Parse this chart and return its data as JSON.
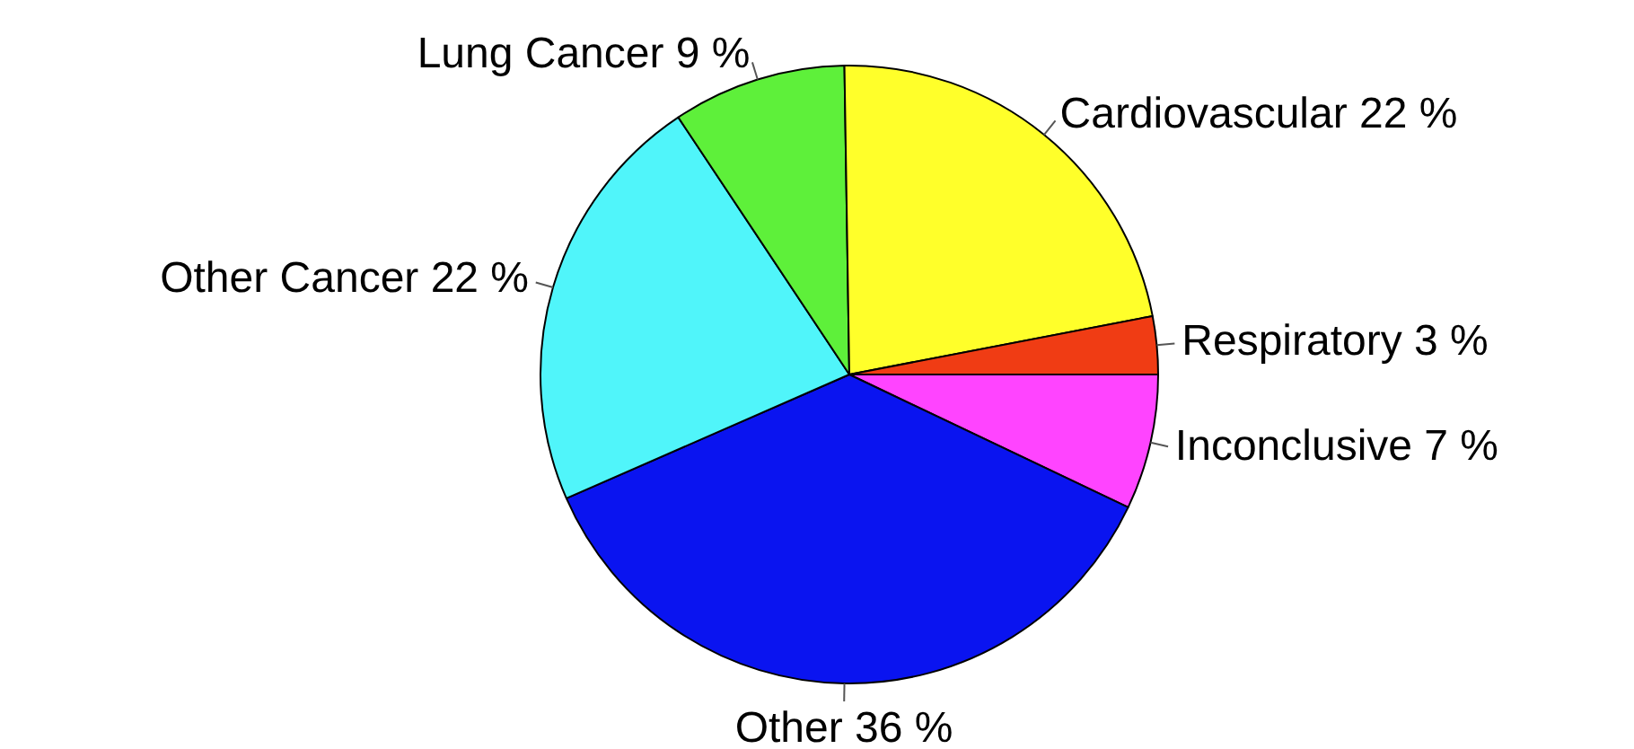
{
  "chart_data": {
    "type": "pie",
    "categories": [
      "Inconclusive",
      "Other",
      "Other Cancer",
      "Lung Cancer",
      "Cardiovascular",
      "Respiratory"
    ],
    "values": [
      7,
      36,
      22,
      9,
      22,
      3
    ],
    "value_labels": [
      "7 %",
      "36 %",
      "22 %",
      "9 %",
      "22 %",
      "3 %"
    ],
    "colors": [
      "#ff44ff",
      "#0a14f0",
      "#50f5fa",
      "#5ef03a",
      "#ffff2a",
      "#f03c14"
    ],
    "legend": false
  }
}
